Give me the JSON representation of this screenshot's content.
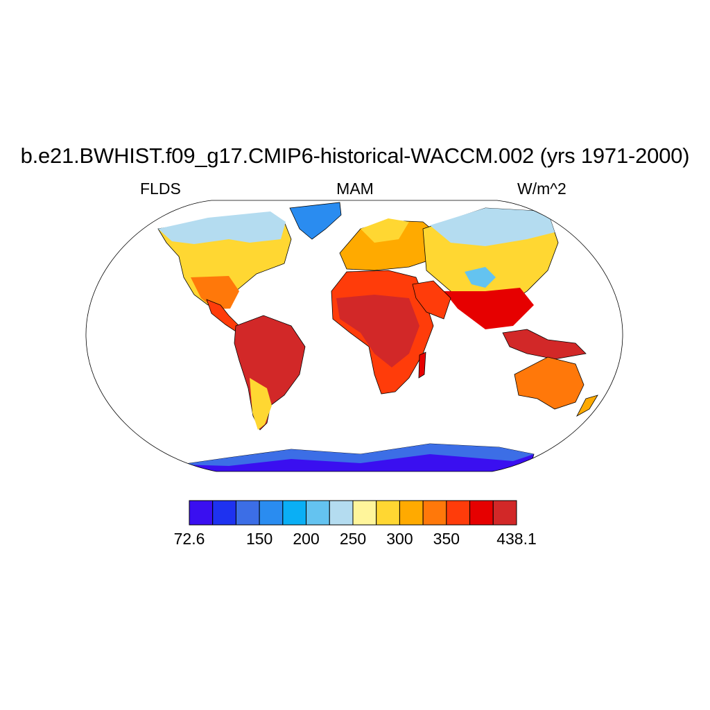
{
  "title": "b.e21.BWHIST.f09_g17.CMIP6-historical-WACCM.002 (yrs 1971-2000)",
  "left_string": "FLDS",
  "center_string": "MAM",
  "right_string": "W/m^2",
  "colorbar": {
    "colors": [
      "#3a0ff0",
      "#1e32f0",
      "#3c6ee6",
      "#2a8cf0",
      "#0aaff5",
      "#64c3f0",
      "#b4dcf0",
      "#fff59b",
      "#ffd732",
      "#ffaa00",
      "#ff780a",
      "#ff3c0a",
      "#e60000",
      "#d22828"
    ],
    "tick_labels": [
      "72.6",
      "150",
      "200",
      "250",
      "300",
      "350",
      "438.1"
    ],
    "tick_box_edges": [
      0,
      3,
      5,
      7,
      9,
      11,
      14
    ]
  },
  "map": {
    "projection": "Robinson",
    "land_colors": {
      "arctic_cold": "#b4dcf0",
      "greenland": "#2a8cf0",
      "temperate": "#fff59b",
      "warm": "#ffd732",
      "warmer": "#ffaa00",
      "hot": "#ff780a",
      "hotter": "#ff3c0a",
      "very_hot": "#e60000",
      "hottest": "#d22828",
      "tibet": "#64c3f0",
      "antarctica": "#3a0ff0",
      "antarctic_coast": "#3c6ee6"
    }
  }
}
